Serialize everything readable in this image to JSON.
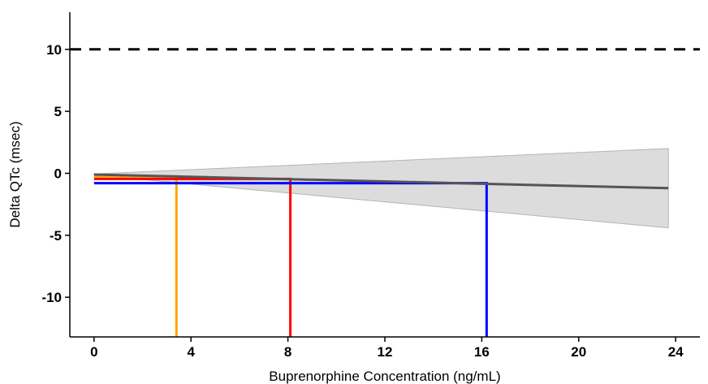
{
  "chart_data": {
    "type": "line",
    "title": "",
    "xlabel": "Buprenorphine Concentration (ng/mL)",
    "ylabel": "Delta QTc (msec)",
    "xlim": [
      -1,
      25
    ],
    "ylim": [
      -13.2,
      13
    ],
    "xticks": [
      0,
      4,
      8,
      12,
      16,
      20,
      24
    ],
    "yticks": [
      10,
      5,
      0,
      -5,
      -10
    ],
    "grid": false,
    "reference_line": {
      "y": 10,
      "style": "dashed",
      "color": "#000000"
    },
    "regression": {
      "x": [
        0,
        23.7
      ],
      "y": [
        -0.1,
        -1.2
      ],
      "color": "#555555",
      "ci_lower": [
        -0.15,
        -4.4
      ],
      "ci_upper": [
        -0.05,
        2.0
      ],
      "ci_color": "#dcdcdc"
    },
    "concentration_markers": [
      {
        "x": 3.4,
        "y": -0.25,
        "color": "#ffa500"
      },
      {
        "x": 8.1,
        "y": -0.45,
        "color": "#ff0000"
      },
      {
        "x": 16.2,
        "y": -0.8,
        "color": "#0000ff"
      }
    ]
  }
}
